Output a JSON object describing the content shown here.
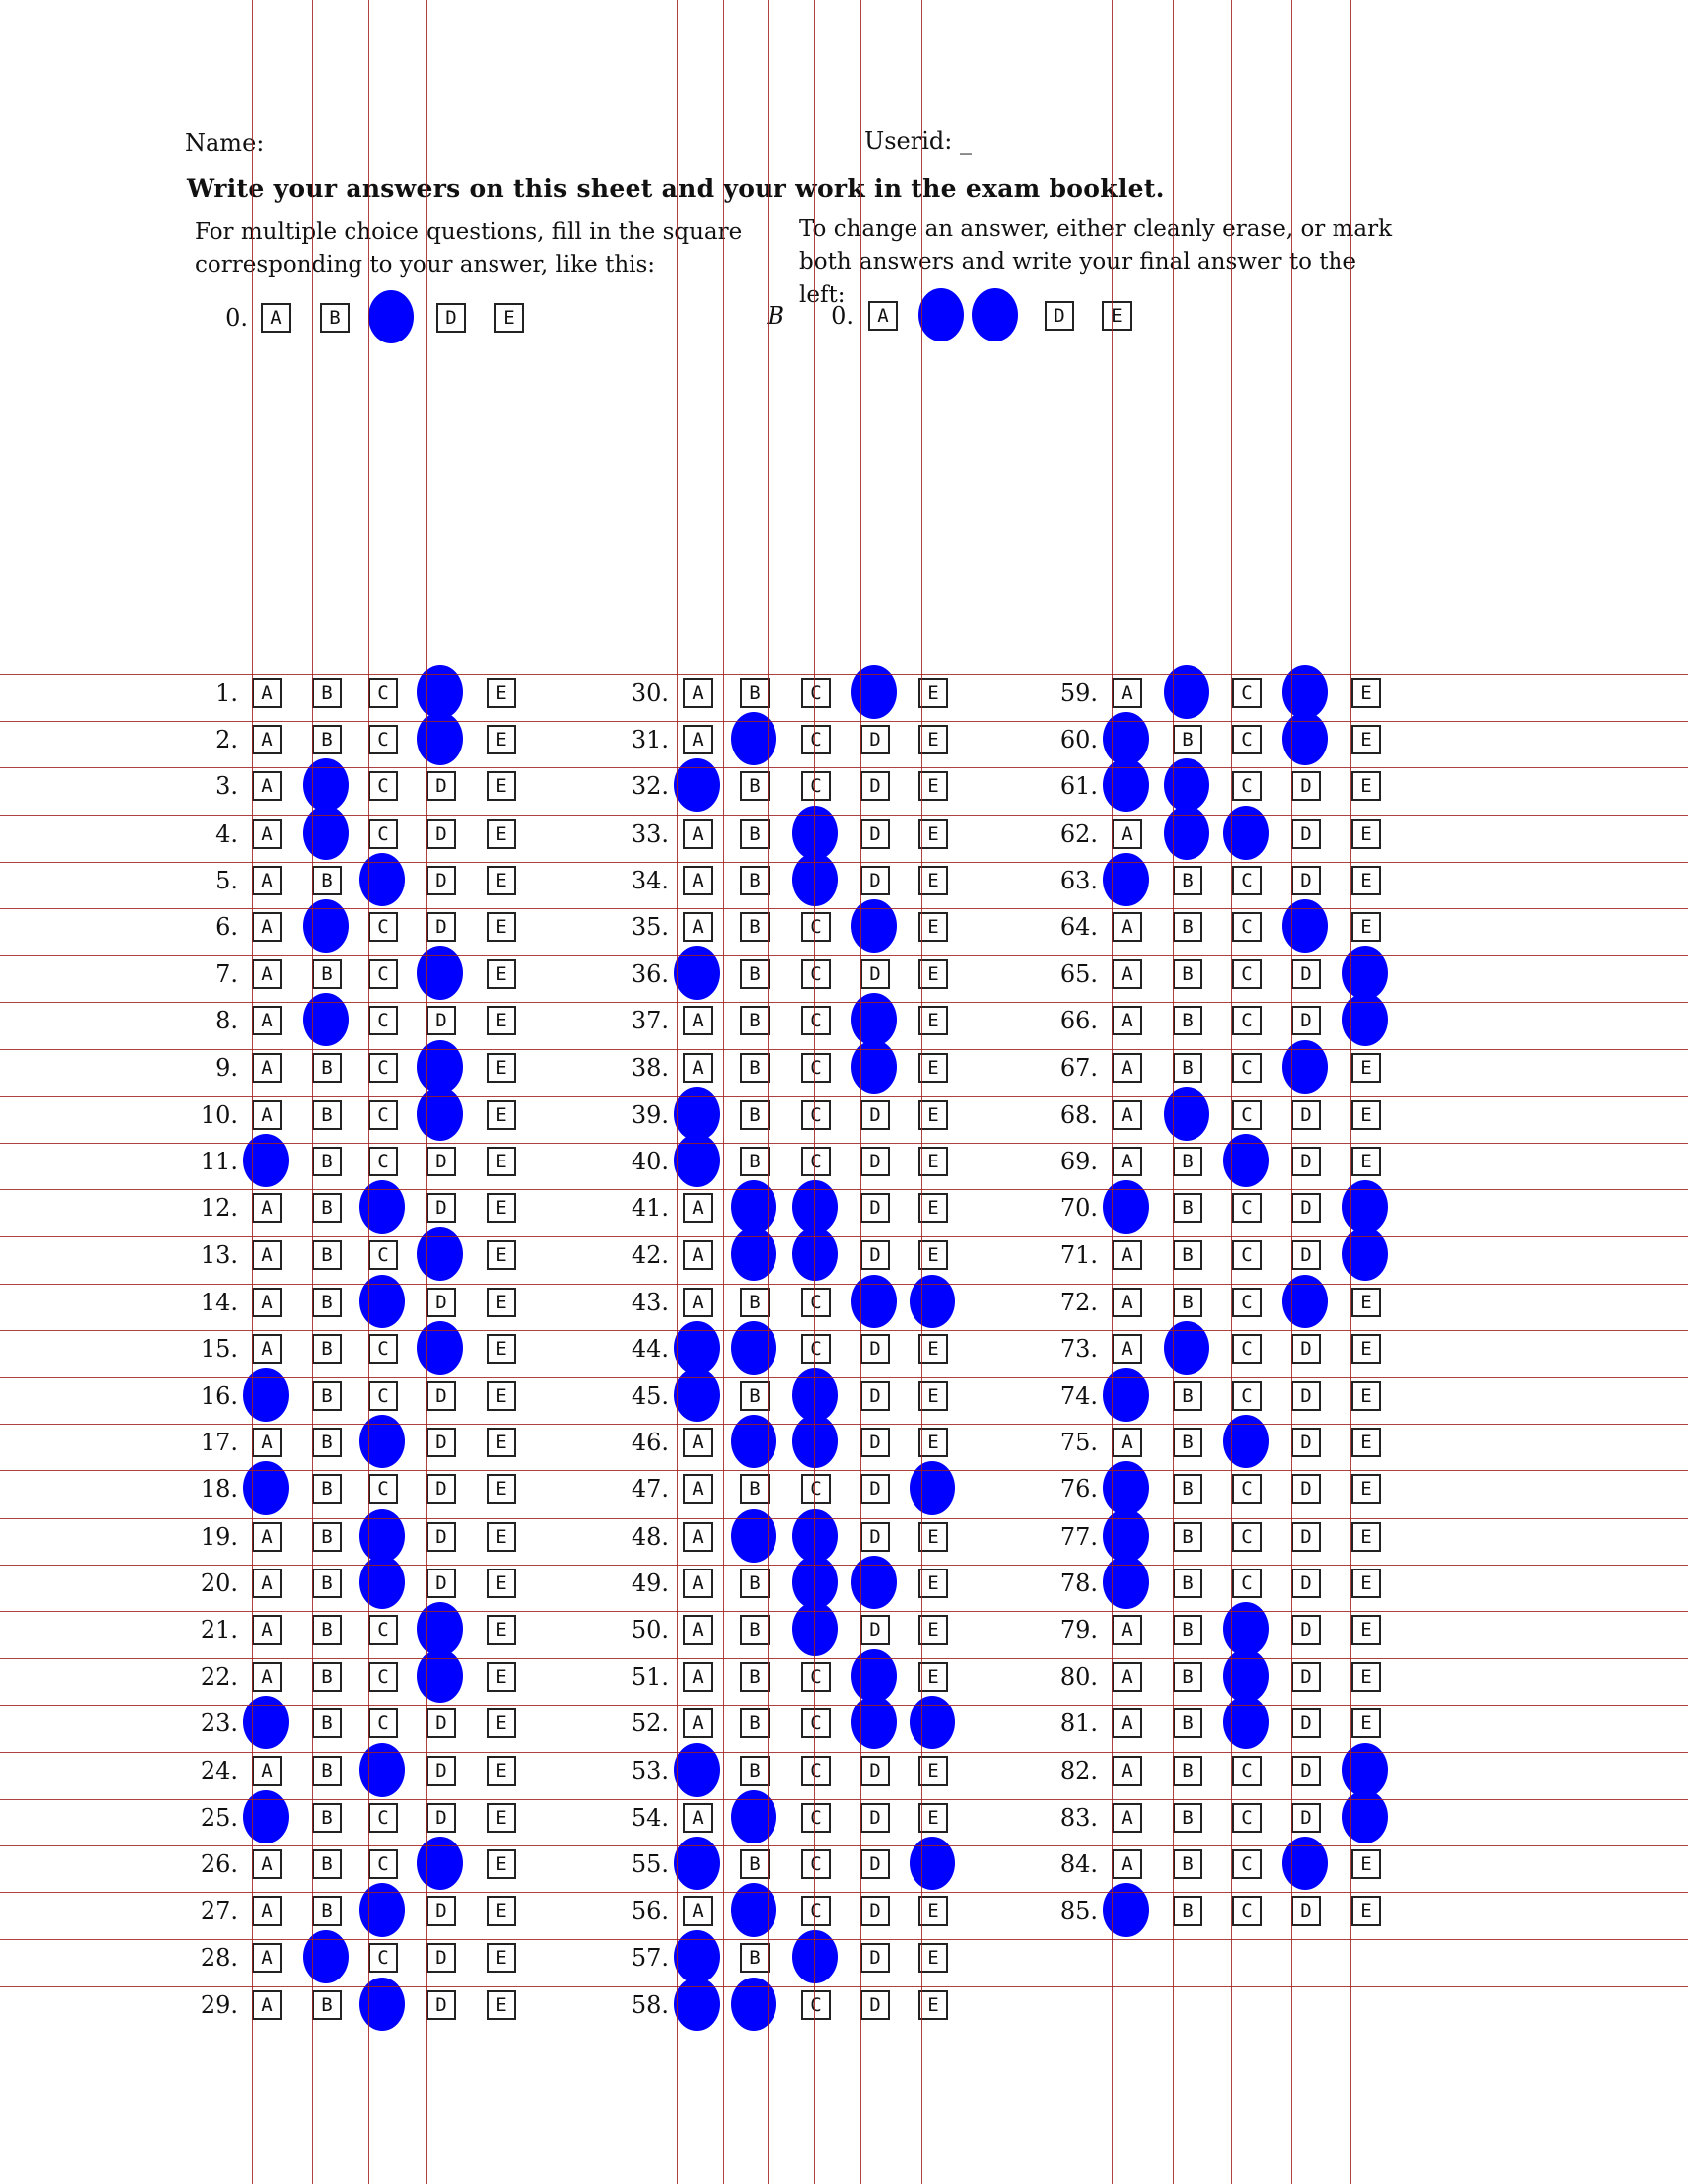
{
  "header": {
    "name_label": "Name:",
    "userid_label": "Userid:",
    "userid_value": "_",
    "title": "Write your answers on this sheet and your work in the exam booklet.",
    "instr_left": "For multiple choice questions, fill in the square corresponding to your answer, like this:",
    "instr_right": "To change an answer, either cleanly erase, or mark both answers and write your final answer to the left:"
  },
  "example_left": {
    "number": "0.",
    "choices": [
      "A",
      "B",
      "C",
      "D",
      "E"
    ],
    "filled": [
      "C"
    ]
  },
  "example_right": {
    "prefix": "B",
    "number": "0.",
    "choices": [
      "A",
      "B",
      "C",
      "D",
      "E"
    ],
    "filled": [
      "B",
      "C"
    ]
  },
  "choices": [
    "A",
    "B",
    "C",
    "D",
    "E"
  ],
  "columns": [
    {
      "start": 1,
      "rows": [
        {
          "n": "1.",
          "f": [
            "D"
          ]
        },
        {
          "n": "2.",
          "f": [
            "D"
          ]
        },
        {
          "n": "3.",
          "f": [
            "B"
          ]
        },
        {
          "n": "4.",
          "f": [
            "B"
          ]
        },
        {
          "n": "5.",
          "f": [
            "C"
          ]
        },
        {
          "n": "6.",
          "f": [
            "B"
          ]
        },
        {
          "n": "7.",
          "f": [
            "D"
          ]
        },
        {
          "n": "8.",
          "f": [
            "B"
          ]
        },
        {
          "n": "9.",
          "f": [
            "D"
          ]
        },
        {
          "n": "10.",
          "f": [
            "D"
          ]
        },
        {
          "n": "11.",
          "f": [
            "A"
          ]
        },
        {
          "n": "12.",
          "f": [
            "C"
          ]
        },
        {
          "n": "13.",
          "f": [
            "D"
          ]
        },
        {
          "n": "14.",
          "f": [
            "C"
          ]
        },
        {
          "n": "15.",
          "f": [
            "D"
          ]
        },
        {
          "n": "16.",
          "f": [
            "A"
          ]
        },
        {
          "n": "17.",
          "f": [
            "C"
          ]
        },
        {
          "n": "18.",
          "f": [
            "A"
          ]
        },
        {
          "n": "19.",
          "f": [
            "C"
          ]
        },
        {
          "n": "20.",
          "f": [
            "C"
          ]
        },
        {
          "n": "21.",
          "f": [
            "D"
          ]
        },
        {
          "n": "22.",
          "f": [
            "D"
          ]
        },
        {
          "n": "23.",
          "f": [
            "A"
          ]
        },
        {
          "n": "24.",
          "f": [
            "C"
          ]
        },
        {
          "n": "25.",
          "f": [
            "A"
          ]
        },
        {
          "n": "26.",
          "f": [
            "D"
          ]
        },
        {
          "n": "27.",
          "f": [
            "C"
          ]
        },
        {
          "n": "28.",
          "f": [
            "B"
          ]
        },
        {
          "n": "29.",
          "f": [
            "C"
          ]
        }
      ]
    },
    {
      "start": 30,
      "rows": [
        {
          "n": "30.",
          "f": [
            "D"
          ]
        },
        {
          "n": "31.",
          "f": [
            "B"
          ]
        },
        {
          "n": "32.",
          "f": [
            "A"
          ]
        },
        {
          "n": "33.",
          "f": [
            "C"
          ]
        },
        {
          "n": "34.",
          "f": [
            "C"
          ]
        },
        {
          "n": "35.",
          "f": [
            "D"
          ]
        },
        {
          "n": "36.",
          "f": [
            "A"
          ]
        },
        {
          "n": "37.",
          "f": [
            "D"
          ]
        },
        {
          "n": "38.",
          "f": [
            "D"
          ]
        },
        {
          "n": "39.",
          "f": [
            "A"
          ]
        },
        {
          "n": "40.",
          "f": [
            "A"
          ]
        },
        {
          "n": "41.",
          "f": [
            "B",
            "C"
          ]
        },
        {
          "n": "42.",
          "f": [
            "B",
            "C"
          ]
        },
        {
          "n": "43.",
          "f": [
            "D",
            "E"
          ]
        },
        {
          "n": "44.",
          "f": [
            "A",
            "B"
          ]
        },
        {
          "n": "45.",
          "f": [
            "A",
            "C"
          ]
        },
        {
          "n": "46.",
          "f": [
            "B",
            "C"
          ]
        },
        {
          "n": "47.",
          "f": [
            "E"
          ]
        },
        {
          "n": "48.",
          "f": [
            "B",
            "C"
          ]
        },
        {
          "n": "49.",
          "f": [
            "C",
            "D"
          ]
        },
        {
          "n": "50.",
          "f": [
            "C"
          ]
        },
        {
          "n": "51.",
          "f": [
            "D"
          ]
        },
        {
          "n": "52.",
          "f": [
            "D",
            "E"
          ]
        },
        {
          "n": "53.",
          "f": [
            "A"
          ]
        },
        {
          "n": "54.",
          "f": [
            "B"
          ]
        },
        {
          "n": "55.",
          "f": [
            "A",
            "E"
          ]
        },
        {
          "n": "56.",
          "f": [
            "B"
          ]
        },
        {
          "n": "57.",
          "f": [
            "A",
            "C"
          ]
        },
        {
          "n": "58.",
          "f": [
            "A",
            "B"
          ]
        }
      ]
    },
    {
      "start": 59,
      "rows": [
        {
          "n": "59.",
          "f": [
            "B",
            "D"
          ]
        },
        {
          "n": "60.",
          "f": [
            "A",
            "D"
          ]
        },
        {
          "n": "61.",
          "f": [
            "A",
            "B"
          ]
        },
        {
          "n": "62.",
          "f": [
            "B",
            "C"
          ]
        },
        {
          "n": "63.",
          "f": [
            "A"
          ]
        },
        {
          "n": "64.",
          "f": [
            "D"
          ]
        },
        {
          "n": "65.",
          "f": [
            "E"
          ]
        },
        {
          "n": "66.",
          "f": [
            "E"
          ]
        },
        {
          "n": "67.",
          "f": [
            "D"
          ]
        },
        {
          "n": "68.",
          "f": [
            "B"
          ]
        },
        {
          "n": "69.",
          "f": [
            "C"
          ]
        },
        {
          "n": "70.",
          "f": [
            "A",
            "E"
          ]
        },
        {
          "n": "71.",
          "f": [
            "E"
          ]
        },
        {
          "n": "72.",
          "f": [
            "D"
          ]
        },
        {
          "n": "73.",
          "f": [
            "B"
          ]
        },
        {
          "n": "74.",
          "f": [
            "A"
          ]
        },
        {
          "n": "75.",
          "f": [
            "C"
          ]
        },
        {
          "n": "76.",
          "f": [
            "A"
          ]
        },
        {
          "n": "77.",
          "f": [
            "A"
          ]
        },
        {
          "n": "78.",
          "f": [
            "A"
          ]
        },
        {
          "n": "79.",
          "f": [
            "C"
          ]
        },
        {
          "n": "80.",
          "f": [
            "C"
          ]
        },
        {
          "n": "81.",
          "f": [
            "C"
          ]
        },
        {
          "n": "82.",
          "f": [
            "E"
          ]
        },
        {
          "n": "83.",
          "f": [
            "E"
          ]
        },
        {
          "n": "84.",
          "f": [
            "D"
          ]
        },
        {
          "n": "85.",
          "f": [
            "A"
          ]
        }
      ]
    }
  ],
  "colors": {
    "fill": "#0000ff",
    "grid": "#a02020",
    "ink": "#111111"
  }
}
